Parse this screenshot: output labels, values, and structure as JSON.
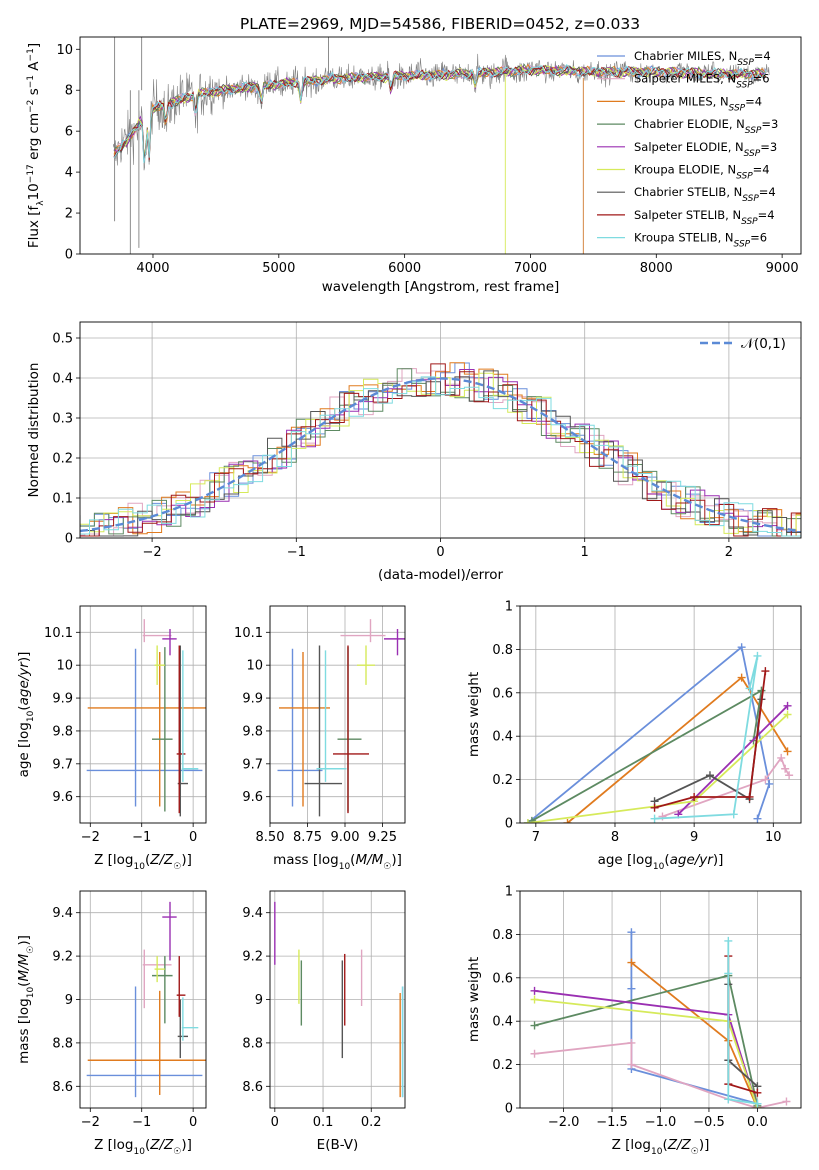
{
  "figure_title": "PLATE=2969, MJD=54586, FIBERID=0452, z=0.033",
  "colors": [
    "#6a8fdb",
    "#e0a5c1",
    "#e07b1f",
    "#5d8a62",
    "#9a2fb2",
    "#d6ea5a",
    "#555555",
    "#a01818",
    "#7fdbe0"
  ],
  "chart_data": [
    {
      "type": "line",
      "title": "PLATE=2969, MJD=54586, FIBERID=0452, z=0.033",
      "xlabel": "wavelength [Angstrom, rest frame]",
      "ylabel": "Flux [f_λ10^-17 erg cm^-2 s^-1 A^-1]",
      "xlim": [
        3420,
        9150
      ],
      "ylim": [
        0,
        10.6
      ],
      "xticks": [
        4000,
        5000,
        6000,
        7000,
        8000,
        9000
      ],
      "yticks": [
        0,
        2,
        4,
        6,
        8,
        10
      ],
      "legend_position": "right",
      "series": [
        {
          "name": "Chabrier MILES, N_SSP=4",
          "color": "#6a8fdb"
        },
        {
          "name": "Salpeter MILES, N_SSP=6",
          "color": "#e0a5c1"
        },
        {
          "name": "Kroupa MILES, N_SSP=4",
          "color": "#e07b1f"
        },
        {
          "name": "Chabrier ELODIE, N_SSP=3",
          "color": "#5d8a62"
        },
        {
          "name": "Salpeter ELODIE, N_SSP=3",
          "color": "#9a2fb2"
        },
        {
          "name": "Kroupa ELODIE, N_SSP=4",
          "color": "#d6ea5a"
        },
        {
          "name": "Chabrier STELIB, N_SSP=4",
          "color": "#555555"
        },
        {
          "name": "Salpeter STELIB, N_SSP=4",
          "color": "#a01818"
        },
        {
          "name": "Kroupa STELIB, N_SSP=6",
          "color": "#7fdbe0"
        }
      ],
      "continuum": [
        [
          3680,
          4.8
        ],
        [
          3800,
          5.6
        ],
        [
          3900,
          6.4
        ],
        [
          4000,
          7.1
        ],
        [
          4200,
          7.5
        ],
        [
          4400,
          7.9
        ],
        [
          4700,
          8.1
        ],
        [
          5000,
          8.3
        ],
        [
          5500,
          8.6
        ],
        [
          6000,
          8.7
        ],
        [
          6500,
          8.8
        ],
        [
          7000,
          9.0
        ],
        [
          7500,
          8.9
        ],
        [
          8000,
          8.9
        ],
        [
          8500,
          8.8
        ],
        [
          8900,
          8.8
        ]
      ]
    },
    {
      "type": "area",
      "xlabel": "(data-model)/error",
      "ylabel": "Normed distribution",
      "xlim": [
        -2.5,
        2.5
      ],
      "ylim": [
        0,
        0.54
      ],
      "xticks": [
        -2,
        -1,
        0,
        1,
        2
      ],
      "yticks": [
        0.0,
        0.1,
        0.2,
        0.3,
        0.4,
        0.5
      ],
      "grid": true,
      "legend_position": "top-right",
      "gaussian_label": "𝒩(0,1)",
      "gaussian_color": "#5b8ad6",
      "bin_width": 0.1
    },
    {
      "type": "scatter",
      "xlabel": "Z [log10(Z/Z☉)]",
      "ylabel": "age  [log10(age/yr)]",
      "xlim": [
        -2.2,
        0.25
      ],
      "ylim": [
        9.52,
        10.18
      ],
      "xticks": [
        -2,
        -1,
        0
      ],
      "yticks": [
        9.6,
        9.7,
        9.8,
        9.9,
        10.0,
        10.1
      ],
      "points": [
        {
          "x": -1.12,
          "y": 9.68,
          "xerr": [
            0.95,
            1.3
          ],
          "yerr": [
            0.11,
            0.37
          ],
          "color": "#6a8fdb"
        },
        {
          "x": -0.95,
          "y": 10.09,
          "xerr": [
            0.03,
            0.53
          ],
          "yerr": [
            0.02,
            0.05
          ],
          "color": "#e0a5c1"
        },
        {
          "x": -0.65,
          "y": 9.87,
          "xerr": [
            1.4,
            1.5
          ],
          "yerr": [
            0.3,
            0.17
          ],
          "color": "#e07b1f"
        },
        {
          "x": -0.55,
          "y": 9.775,
          "xerr": [
            0.25,
            0.15
          ],
          "yerr": [
            0.22,
            0.28
          ],
          "color": "#5d8a62"
        },
        {
          "x": -0.45,
          "y": 10.08,
          "xerr": [
            0.15,
            0.13
          ],
          "yerr": [
            0.05,
            0.03
          ],
          "color": "#9a2fb2"
        },
        {
          "x": -0.7,
          "y": 10.0,
          "xerr": [
            0.05,
            0.15
          ],
          "yerr": [
            0.06,
            0.06
          ],
          "color": "#d6ea5a"
        },
        {
          "x": -0.25,
          "y": 9.64,
          "xerr": [
            0.05,
            0.15
          ],
          "yerr": [
            0.1,
            0.42
          ],
          "color": "#555555"
        },
        {
          "x": -0.27,
          "y": 9.73,
          "xerr": [
            0.05,
            0.12
          ],
          "yerr": [
            0.18,
            0.33
          ],
          "color": "#a01818"
        },
        {
          "x": -0.2,
          "y": 9.685,
          "xerr": [
            0.02,
            0.3
          ],
          "yerr": [
            0.04,
            0.36
          ],
          "color": "#7fdbe0"
        }
      ]
    },
    {
      "type": "scatter",
      "xlabel": "mass [log10(M/M☉)]",
      "ylabel": "",
      "xlim": [
        8.5,
        9.4
      ],
      "ylim": [
        9.52,
        10.18
      ],
      "xticks": [
        8.5,
        8.75,
        9.0,
        9.25
      ],
      "xticklabels": [
        "8.50",
        "8.75",
        "9.00",
        "9.25"
      ],
      "yticks": [
        9.6,
        9.7,
        9.8,
        9.9,
        10.0,
        10.1
      ],
      "points": [
        {
          "x": 8.65,
          "y": 9.68,
          "xerr": [
            0.1,
            0.2
          ],
          "yerr": [
            0.11,
            0.37
          ],
          "color": "#6a8fdb"
        },
        {
          "x": 9.17,
          "y": 10.09,
          "xerr": [
            0.2,
            0.1
          ],
          "yerr": [
            0.02,
            0.05
          ],
          "color": "#e0a5c1"
        },
        {
          "x": 8.72,
          "y": 9.87,
          "xerr": [
            0.16,
            0.18
          ],
          "yerr": [
            0.3,
            0.17
          ],
          "color": "#e07b1f"
        },
        {
          "x": 9.02,
          "y": 9.775,
          "xerr": [
            0.07,
            0.09
          ],
          "yerr": [
            0.22,
            0.28
          ],
          "color": "#5d8a62"
        },
        {
          "x": 9.35,
          "y": 10.08,
          "xerr": [
            0.09,
            0.1
          ],
          "yerr": [
            0.05,
            0.03
          ],
          "color": "#9a2fb2"
        },
        {
          "x": 9.14,
          "y": 10.0,
          "xerr": [
            0.06,
            0.06
          ],
          "yerr": [
            0.06,
            0.06
          ],
          "color": "#d6ea5a"
        },
        {
          "x": 8.83,
          "y": 9.64,
          "xerr": [
            0.1,
            0.15
          ],
          "yerr": [
            0.1,
            0.42
          ],
          "color": "#555555"
        },
        {
          "x": 9.02,
          "y": 9.73,
          "xerr": [
            0.1,
            0.14
          ],
          "yerr": [
            0.18,
            0.33
          ],
          "color": "#a01818"
        },
        {
          "x": 8.87,
          "y": 9.685,
          "xerr": [
            0.06,
            0.14
          ],
          "yerr": [
            0.04,
            0.36
          ],
          "color": "#7fdbe0"
        }
      ]
    },
    {
      "type": "line",
      "xlabel": "age  [log10(age/yr)]",
      "ylabel": "mass weight",
      "xlim": [
        6.8,
        10.35
      ],
      "ylim": [
        0,
        1.0
      ],
      "xticks": [
        7,
        8,
        9,
        10
      ],
      "yticks": [
        0.0,
        0.2,
        0.4,
        0.6,
        0.8,
        1.0
      ],
      "grid": true,
      "series": [
        {
          "color": "#6a8fdb",
          "x": [
            6.9,
            9.6,
            9.95,
            9.8
          ],
          "y": [
            0.0,
            0.81,
            0.18,
            0.02
          ]
        },
        {
          "color": "#e0a5c1",
          "x": [
            8.6,
            9.9,
            10.1,
            10.15,
            10.2
          ],
          "y": [
            0.03,
            0.2,
            0.3,
            0.25,
            0.22
          ]
        },
        {
          "color": "#e07b1f",
          "x": [
            7.4,
            9.6,
            10.18
          ],
          "y": [
            0.0,
            0.67,
            0.33
          ]
        },
        {
          "color": "#5d8a62",
          "x": [
            6.95,
            9.85,
            9.75
          ],
          "y": [
            0.01,
            0.61,
            0.38
          ]
        },
        {
          "color": "#9a2fb2",
          "x": [
            8.8,
            10.18
          ],
          "y": [
            0.04,
            0.54
          ]
        },
        {
          "color": "#d6ea5a",
          "x": [
            6.9,
            9.0,
            10.18
          ],
          "y": [
            0.0,
            0.1,
            0.5
          ]
        },
        {
          "color": "#555555",
          "x": [
            8.5,
            9.2,
            9.7,
            9.85
          ],
          "y": [
            0.1,
            0.22,
            0.11,
            0.57
          ]
        },
        {
          "color": "#a01818",
          "x": [
            8.5,
            9.0,
            9.7,
            9.9
          ],
          "y": [
            0.07,
            0.12,
            0.12,
            0.7
          ]
        },
        {
          "color": "#7fdbe0",
          "x": [
            8.5,
            9.5,
            9.8,
            9.7
          ],
          "y": [
            0.02,
            0.04,
            0.77,
            0.62
          ]
        }
      ]
    },
    {
      "type": "scatter",
      "xlabel": "Z [log10(Z/Z☉)]",
      "ylabel": "mass [log10(M/M☉)]",
      "xlim": [
        -2.2,
        0.25
      ],
      "ylim": [
        8.5,
        9.5
      ],
      "xticks": [
        -2,
        -1,
        0
      ],
      "yticks": [
        8.6,
        8.8,
        9.0,
        9.2,
        9.4
      ],
      "points": [
        {
          "x": -1.12,
          "y": 8.65,
          "xerr": [
            0.95,
            1.3
          ],
          "yerr": [
            0.1,
            0.41
          ],
          "color": "#6a8fdb"
        },
        {
          "x": -0.95,
          "y": 9.16,
          "xerr": [
            0.03,
            0.53
          ],
          "yerr": [
            0.2,
            0.07
          ],
          "color": "#e0a5c1"
        },
        {
          "x": -0.65,
          "y": 8.72,
          "xerr": [
            1.4,
            1.5
          ],
          "yerr": [
            0.16,
            0.32
          ],
          "color": "#e07b1f"
        },
        {
          "x": -0.55,
          "y": 9.11,
          "xerr": [
            0.25,
            0.15
          ],
          "yerr": [
            0.22,
            0.09
          ],
          "color": "#5d8a62"
        },
        {
          "x": -0.45,
          "y": 9.38,
          "xerr": [
            0.15,
            0.13
          ],
          "yerr": [
            0.2,
            0.07
          ],
          "color": "#9a2fb2"
        },
        {
          "x": -0.7,
          "y": 9.14,
          "xerr": [
            0.05,
            0.15
          ],
          "yerr": [
            0.06,
            0.06
          ],
          "color": "#d6ea5a"
        },
        {
          "x": -0.25,
          "y": 8.83,
          "xerr": [
            0.05,
            0.15
          ],
          "yerr": [
            0.1,
            0.17
          ],
          "color": "#555555"
        },
        {
          "x": -0.27,
          "y": 9.02,
          "xerr": [
            0.05,
            0.12
          ],
          "yerr": [
            0.1,
            0.18
          ],
          "color": "#a01818"
        },
        {
          "x": -0.2,
          "y": 8.87,
          "xerr": [
            0.02,
            0.3
          ],
          "yerr": [
            0.06,
            0.14
          ],
          "color": "#7fdbe0"
        }
      ]
    },
    {
      "type": "scatter",
      "xlabel": "E(B-V)",
      "ylabel": "",
      "xlim": [
        -0.01,
        0.27
      ],
      "ylim": [
        8.5,
        9.5
      ],
      "xticks": [
        0.0,
        0.1,
        0.2
      ],
      "yticks": [
        8.6,
        8.8,
        9.0,
        9.2,
        9.4
      ],
      "points": [
        {
          "x": 0.265,
          "y": 8.8,
          "yerr": [
            0.25,
            0.26
          ],
          "color": "#6a8fdb"
        },
        {
          "x": 0.18,
          "y": 9.09,
          "yerr": [
            0.12,
            0.14
          ],
          "color": "#e0a5c1"
        },
        {
          "x": 0.26,
          "y": 8.79,
          "yerr": [
            0.24,
            0.24
          ],
          "color": "#e07b1f"
        },
        {
          "x": 0.055,
          "y": 9.03,
          "yerr": [
            0.15,
            0.15
          ],
          "color": "#5d8a62"
        },
        {
          "x": 0.0,
          "y": 9.31,
          "yerr": [
            0.15,
            0.14
          ],
          "color": "#9a2fb2"
        },
        {
          "x": 0.05,
          "y": 9.1,
          "yerr": [
            0.12,
            0.13
          ],
          "color": "#d6ea5a"
        },
        {
          "x": 0.14,
          "y": 8.96,
          "yerr": [
            0.23,
            0.22
          ],
          "color": "#555555"
        },
        {
          "x": 0.145,
          "y": 9.04,
          "yerr": [
            0.16,
            0.17
          ],
          "color": "#a01818"
        },
        {
          "x": 0.265,
          "y": 8.8,
          "yerr": [
            0.25,
            0.26
          ],
          "color": "#7fdbe0"
        }
      ]
    },
    {
      "type": "line",
      "xlabel": "Z [log10(Z/Z☉)]",
      "ylabel": "mass weight",
      "xlim": [
        -2.45,
        0.45
      ],
      "ylim": [
        0,
        1.0
      ],
      "xticks": [
        -2.0,
        -1.5,
        -1.0,
        -0.5,
        0.0
      ],
      "xticklabels": [
        "−2.0",
        "−1.5",
        "−1.0",
        "−0.5",
        "0.0"
      ],
      "yticks": [
        0.0,
        0.2,
        0.4,
        0.6,
        0.8,
        1.0
      ],
      "grid": true,
      "series": [
        {
          "color": "#6a8fdb",
          "x": [
            -1.3,
            -1.3,
            -1.3,
            0.0,
            0.0
          ],
          "y": [
            0.81,
            0.55,
            0.18,
            0.02,
            0.0
          ]
        },
        {
          "color": "#e0a5c1",
          "x": [
            -2.3,
            -1.3,
            -1.3,
            -0.3,
            0.0,
            0.3
          ],
          "y": [
            0.25,
            0.3,
            0.2,
            0.04,
            0.0,
            0.03
          ]
        },
        {
          "color": "#e07b1f",
          "x": [
            -1.3,
            -0.3,
            0.0
          ],
          "y": [
            0.67,
            0.31,
            0.0
          ]
        },
        {
          "color": "#5d8a62",
          "x": [
            -2.3,
            -0.3,
            0.0
          ],
          "y": [
            0.38,
            0.61,
            0.01
          ]
        },
        {
          "color": "#9a2fb2",
          "x": [
            -2.3,
            -0.3,
            0.0
          ],
          "y": [
            0.54,
            0.43,
            0.0
          ]
        },
        {
          "color": "#d6ea5a",
          "x": [
            -2.3,
            -0.3,
            0.0
          ],
          "y": [
            0.5,
            0.4,
            0.0
          ]
        },
        {
          "color": "#555555",
          "x": [
            -0.3,
            -0.3,
            0.0
          ],
          "y": [
            0.57,
            0.22,
            0.1
          ]
        },
        {
          "color": "#a01818",
          "x": [
            -0.3,
            -0.3,
            0.0
          ],
          "y": [
            0.7,
            0.11,
            0.07
          ]
        },
        {
          "color": "#7fdbe0",
          "x": [
            -0.3,
            -0.3,
            -0.3,
            0.0
          ],
          "y": [
            0.77,
            0.62,
            0.04,
            0.02
          ]
        }
      ]
    }
  ]
}
